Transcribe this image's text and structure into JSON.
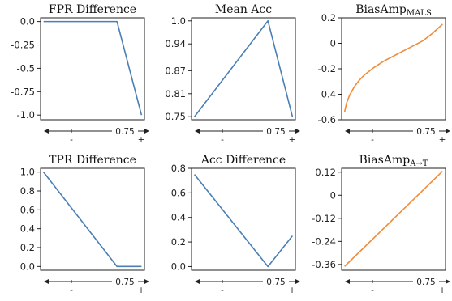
{
  "colors": {
    "blue": "#4a7fb5",
    "orange": "#f08c3a"
  },
  "x_axis_labels": {
    "minus": "-",
    "mid": "0.75",
    "plus": "+"
  },
  "chart_data": [
    {
      "type": "line",
      "title": "FPR Difference",
      "title_sub": "",
      "ylim": [
        -1.05,
        0.04
      ],
      "yticks": [
        0.0,
        -0.25,
        -0.5,
        -0.75,
        -1.0
      ],
      "ytick_labels": [
        "0.0",
        "-0.25",
        "-0.5",
        "-0.75",
        "-1.0"
      ],
      "xlim": [
        -0.03,
        1.03
      ],
      "color": "blue",
      "x": [
        0.0,
        0.75,
        1.0
      ],
      "y": [
        0.0,
        0.0,
        -1.0
      ]
    },
    {
      "type": "line",
      "title": "Mean Acc",
      "title_sub": "",
      "ylim": [
        0.742,
        1.008
      ],
      "yticks": [
        1.0,
        0.94,
        0.87,
        0.81,
        0.75
      ],
      "ytick_labels": [
        "1.0",
        "0.94",
        "0.87",
        "0.81",
        "0.75"
      ],
      "xlim": [
        -0.03,
        1.03
      ],
      "color": "blue",
      "x": [
        0.0,
        0.75,
        1.0
      ],
      "y": [
        0.75,
        1.0,
        0.75
      ]
    },
    {
      "type": "line",
      "title": "BiasAmp",
      "title_sub": "MALS",
      "ylim": [
        -0.6,
        0.2
      ],
      "yticks": [
        0.2,
        0.0,
        -0.2,
        -0.4,
        -0.6
      ],
      "ytick_labels": [
        "0.2",
        "0",
        "-0.2",
        "-0.4",
        "-0.6"
      ],
      "xlim": [
        -0.03,
        1.03
      ],
      "color": "orange",
      "x": [
        0.0,
        0.02,
        0.05,
        0.1,
        0.15,
        0.2,
        0.3,
        0.4,
        0.5,
        0.6,
        0.7,
        0.8,
        0.9,
        1.0
      ],
      "y": [
        -0.54,
        -0.47,
        -0.41,
        -0.34,
        -0.29,
        -0.25,
        -0.19,
        -0.14,
        -0.1,
        -0.06,
        -0.02,
        0.02,
        0.08,
        0.15
      ]
    },
    {
      "type": "line",
      "title": "TPR Difference",
      "title_sub": "",
      "ylim": [
        -0.04,
        1.04
      ],
      "yticks": [
        1.0,
        0.8,
        0.6,
        0.4,
        0.2,
        0.0
      ],
      "ytick_labels": [
        "1.0",
        "0.8",
        "0.6",
        "0.4",
        "0.2",
        "0.0"
      ],
      "xlim": [
        -0.03,
        1.03
      ],
      "color": "blue",
      "x": [
        0.0,
        0.75,
        1.0
      ],
      "y": [
        1.0,
        0.0,
        0.0
      ]
    },
    {
      "type": "line",
      "title": "Acc Difference",
      "title_sub": "",
      "ylim": [
        -0.03,
        0.8
      ],
      "yticks": [
        0.8,
        0.6,
        0.4,
        0.2,
        0.0
      ],
      "ytick_labels": [
        "0.8",
        "0.6",
        "0.4",
        "0.2",
        "0.0"
      ],
      "xlim": [
        -0.03,
        1.03
      ],
      "color": "blue",
      "x": [
        0.0,
        0.75,
        1.0
      ],
      "y": [
        0.75,
        0.0,
        0.25
      ]
    },
    {
      "type": "line",
      "title": "BiasAmp",
      "title_sub": "A→T",
      "ylim": [
        -0.39,
        0.14
      ],
      "yticks": [
        0.12,
        0.0,
        -0.12,
        -0.24,
        -0.36
      ],
      "ytick_labels": [
        "0.12",
        "0",
        "-0.12",
        "-0.24",
        "-0.36"
      ],
      "xlim": [
        -0.03,
        1.03
      ],
      "color": "orange",
      "x": [
        0.0,
        1.0
      ],
      "y": [
        -0.37,
        0.125
      ]
    }
  ]
}
